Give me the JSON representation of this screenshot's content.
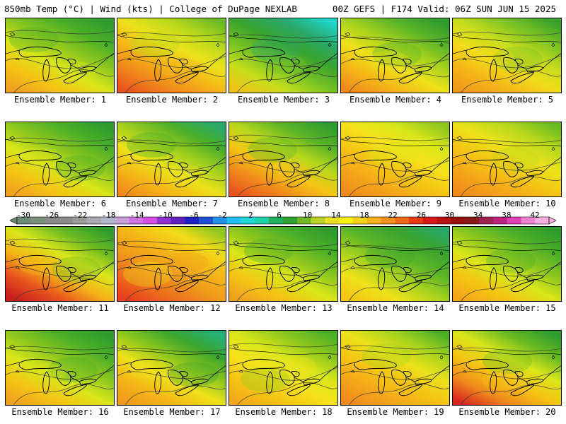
{
  "header": {
    "left": "850mb Temp (°C) | Wind (kts) | College of DuPage NEXLAB",
    "right": "00Z GEFS | F174 Valid: 06Z SUN JUN 15 2025"
  },
  "member_label_prefix": "Ensemble Member: ",
  "members": [
    {
      "number": "1",
      "label": "Ensemble Member: 1",
      "dominant_temp_c": 10,
      "colors": [
        "#2e9b2e",
        "#4caf28",
        "#8cc61e",
        "#d9e61a",
        "#f4c514",
        "#f0a020"
      ]
    },
    {
      "number": "2",
      "label": "Ensemble Member: 2",
      "dominant_temp_c": 16,
      "colors": [
        "#6cba22",
        "#b8d81c",
        "#ece21a",
        "#f4b617",
        "#f08a1c",
        "#e8541e"
      ]
    },
    {
      "number": "3",
      "label": "Ensemble Member: 3",
      "dominant_temp_c": 8,
      "colors": [
        "#1fd4c8",
        "#2aa86a",
        "#3ba42e",
        "#78c224",
        "#c8de1c",
        "#f0c217"
      ]
    },
    {
      "number": "4",
      "label": "Ensemble Member: 4",
      "dominant_temp_c": 10,
      "colors": [
        "#2e9b2e",
        "#5cb428",
        "#a6d21e",
        "#eee21a",
        "#f4b617",
        "#f08a1c"
      ]
    },
    {
      "number": "5",
      "label": "Ensemble Member: 5",
      "dominant_temp_c": 12,
      "colors": [
        "#3aa02c",
        "#7cc224",
        "#c6dc1c",
        "#f2dc1a",
        "#f4b617",
        "#f09a1c"
      ]
    },
    {
      "number": "6",
      "label": "Ensemble Member: 6",
      "dominant_temp_c": 10,
      "colors": [
        "#2e9b2e",
        "#4caf28",
        "#8cc61e",
        "#d9e61a",
        "#f4c514",
        "#f0a020"
      ]
    },
    {
      "number": "7",
      "label": "Ensemble Member: 7",
      "dominant_temp_c": 14,
      "colors": [
        "#2aa86a",
        "#4caf28",
        "#a0cf1e",
        "#ece21a",
        "#f4b617",
        "#f08a1c"
      ]
    },
    {
      "number": "8",
      "label": "Ensemble Member: 8",
      "dominant_temp_c": 12,
      "colors": [
        "#2e9b2e",
        "#5cb428",
        "#b8d81c",
        "#f4c514",
        "#f08a1c",
        "#e8541e"
      ]
    },
    {
      "number": "9",
      "label": "Ensemble Member: 9",
      "dominant_temp_c": 14,
      "colors": [
        "#8cc61e",
        "#d9e61a",
        "#f6e21a",
        "#f4c514",
        "#f4a61a",
        "#f08a1c"
      ]
    },
    {
      "number": "10",
      "label": "Ensemble Member: 10",
      "dominant_temp_c": 14,
      "colors": [
        "#6cba22",
        "#b8d81c",
        "#ece21a",
        "#f4c514",
        "#f4a61a",
        "#f08a1c"
      ]
    },
    {
      "number": "11",
      "label": "Ensemble Member: 11",
      "dominant_temp_c": 10,
      "colors": [
        "#2e9b2e",
        "#6cba22",
        "#d9e61a",
        "#f4b617",
        "#e8541e",
        "#c81e1e"
      ]
    },
    {
      "number": "12",
      "label": "Ensemble Member: 12",
      "dominant_temp_c": 18,
      "colors": [
        "#8cc61e",
        "#f2dc1a",
        "#f4b617",
        "#f09a1c",
        "#ec6e1e",
        "#e8401e"
      ]
    },
    {
      "number": "13",
      "label": "Ensemble Member: 13",
      "dominant_temp_c": 10,
      "colors": [
        "#2e9b2e",
        "#4caf28",
        "#8cc61e",
        "#d9e61a",
        "#f4c514",
        "#f0a020"
      ]
    },
    {
      "number": "14",
      "label": "Ensemble Member: 14",
      "dominant_temp_c": 8,
      "colors": [
        "#2aa86a",
        "#3ba42e",
        "#5cb428",
        "#a6d21e",
        "#eee21a",
        "#f4c514"
      ]
    },
    {
      "number": "15",
      "label": "Ensemble Member: 15",
      "dominant_temp_c": 8,
      "colors": [
        "#2e9b2e",
        "#4caf28",
        "#8cc61e",
        "#d9e61a",
        "#f4c514",
        "#f4a61a"
      ]
    },
    {
      "number": "16",
      "label": "Ensemble Member: 16",
      "dominant_temp_c": 10,
      "colors": [
        "#2e9b2e",
        "#4caf28",
        "#8cc61e",
        "#d9e61a",
        "#f4c514",
        "#f0a020"
      ]
    },
    {
      "number": "17",
      "label": "Ensemble Member: 17",
      "dominant_temp_c": 10,
      "colors": [
        "#26b27a",
        "#3ba42e",
        "#8cc61e",
        "#eee21a",
        "#f4b617",
        "#f09a1c"
      ]
    },
    {
      "number": "18",
      "label": "Ensemble Member: 18",
      "dominant_temp_c": 14,
      "colors": [
        "#4caf28",
        "#8cc61e",
        "#d9e61a",
        "#f6e21a",
        "#f4c514",
        "#f4a61a"
      ]
    },
    {
      "number": "19",
      "label": "Ensemble Member: 19",
      "dominant_temp_c": 14,
      "colors": [
        "#4caf28",
        "#a6d21e",
        "#ece21a",
        "#f4c514",
        "#f4a61a",
        "#f08a1c"
      ]
    },
    {
      "number": "20",
      "label": "Ensemble Member: 20",
      "dominant_temp_c": 12,
      "colors": [
        "#2e9b2e",
        "#6cba22",
        "#d9e61a",
        "#f4c514",
        "#f08a1c",
        "#d8281e"
      ]
    }
  ],
  "colorbar": {
    "ticks": [
      "-30",
      "-26",
      "-22",
      "-18",
      "-14",
      "-10",
      "-6",
      "-2",
      "2",
      "6",
      "10",
      "14",
      "18",
      "22",
      "26",
      "30",
      "34",
      "38",
      "42"
    ],
    "colors": [
      "#6e8a78",
      "#7e8e7e",
      "#888a88",
      "#8a8a8a",
      "#9a9a9a",
      "#a8a8b4",
      "#b0b4cc",
      "#c89ed8",
      "#d070e0",
      "#d050e0",
      "#9030d0",
      "#6020c0",
      "#2020c8",
      "#2050d8",
      "#2090e8",
      "#20c0f0",
      "#20d8d8",
      "#20d0a8",
      "#20b060",
      "#30a030",
      "#70b828",
      "#b8d020",
      "#e8e020",
      "#f8f010",
      "#f8d018",
      "#f4b018",
      "#f09018",
      "#f06818",
      "#e83818",
      "#d81818",
      "#b81010",
      "#981010",
      "#881818",
      "#a02050",
      "#c02080",
      "#e040b0",
      "#f080d0",
      "#f8b0e0"
    ]
  }
}
